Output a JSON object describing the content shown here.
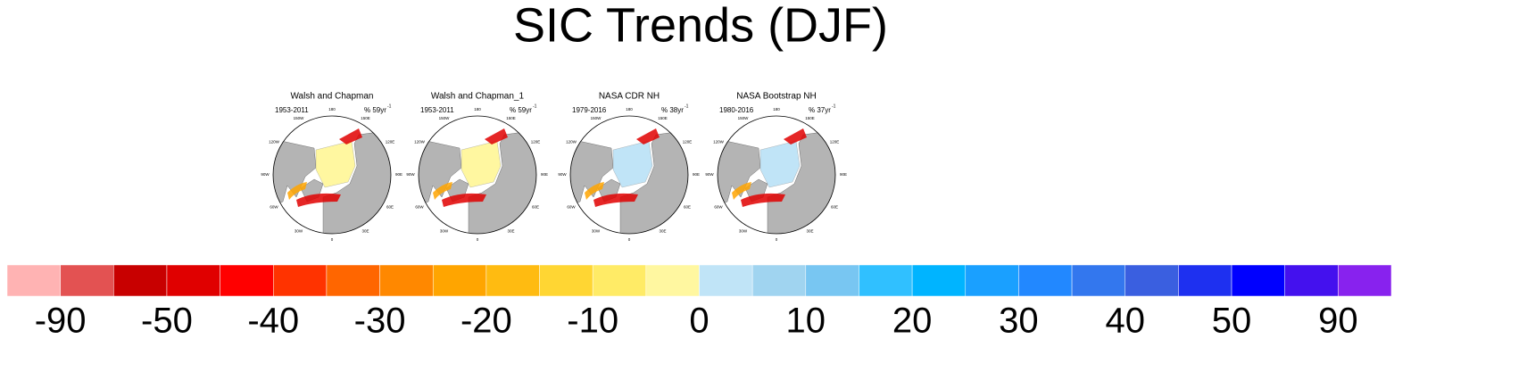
{
  "title": "SIC Trends (DJF)",
  "panels": [
    {
      "title": "Walsh and Chapman",
      "period": "1953-2011",
      "units": "% 59yr",
      "exponent": "-1"
    },
    {
      "title": "Walsh and Chapman_1",
      "period": "1953-2011",
      "units": "% 59yr",
      "exponent": "-1"
    },
    {
      "title": "NASA CDR NH",
      "period": "1979-2016",
      "units": "% 38yr",
      "exponent": "-1"
    },
    {
      "title": "NASA Bootstrap NH",
      "period": "1980-2016",
      "units": "% 37yr",
      "exponent": "-1"
    }
  ],
  "meridians": [
    "0",
    "30E",
    "60E",
    "90E",
    "120E",
    "150E",
    "180",
    "150W",
    "120W",
    "90W",
    "60W",
    "30W"
  ],
  "colorbar": {
    "colors": [
      "#ffb3b3",
      "#e35252",
      "#c80000",
      "#e00000",
      "#ff0000",
      "#ff3300",
      "#ff6600",
      "#ff8800",
      "#ffa500",
      "#ffbb11",
      "#ffd633",
      "#ffeb66",
      "#fff7a0",
      "#c0e4f7",
      "#a0d4f0",
      "#78c6f2",
      "#30c0ff",
      "#00b4ff",
      "#1aa0ff",
      "#2288ff",
      "#3377ee",
      "#3a5fe0",
      "#1e30f0",
      "#0000ff",
      "#4411ee",
      "#8822ee"
    ],
    "labels": [
      -90,
      -50,
      -40,
      -30,
      -20,
      -10,
      0,
      10,
      20,
      30,
      40,
      50,
      90
    ]
  }
}
